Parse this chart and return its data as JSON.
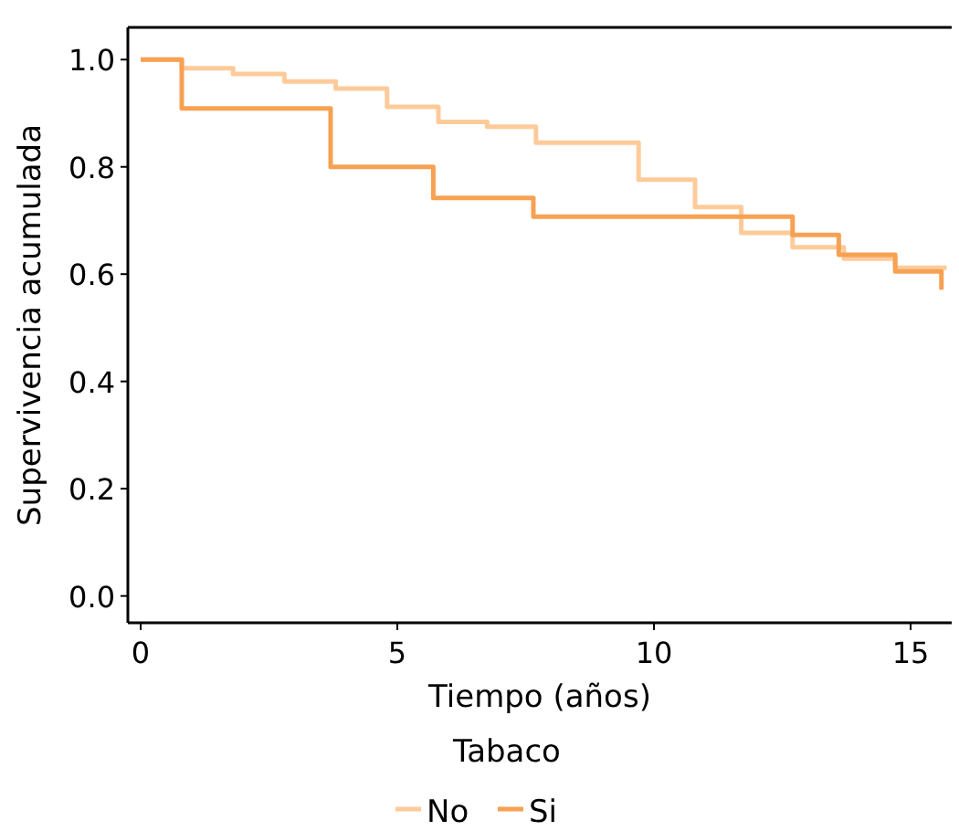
{
  "chart_data": {
    "type": "step",
    "xlabel": "Tiempo (años)",
    "ylabel": "Supervivencia acumulada",
    "legend_title": "Tabaco",
    "legend": "bottom",
    "grid": false,
    "xlim": [
      -0.25,
      15.8
    ],
    "xticks": [
      0,
      5,
      10,
      15
    ],
    "ylim": [
      -0.05,
      1.06
    ],
    "yticks": [
      {
        "value": 0,
        "label": "0.0"
      },
      {
        "value": 0.2,
        "label": "0.2"
      },
      {
        "value": 0.4,
        "label": "0.4"
      },
      {
        "value": 0.6,
        "label": "0.6"
      },
      {
        "value": 0.8,
        "label": "0.8"
      },
      {
        "value": 1,
        "label": "1.0"
      }
    ],
    "series": [
      {
        "name": "No",
        "color": "#fdcb9a",
        "x": [
          0,
          0.8,
          1.8,
          2.8,
          3.8,
          4.8,
          5.8,
          6.75,
          7.7,
          9.7,
          10.8,
          11.7,
          12.7,
          13.7,
          14.7,
          15.7
        ],
        "values": [
          1.0,
          0.984,
          0.973,
          0.959,
          0.946,
          0.912,
          0.884,
          0.875,
          0.845,
          0.776,
          0.725,
          0.677,
          0.65,
          0.629,
          0.612,
          0.612
        ]
      },
      {
        "name": "Si",
        "color": "#f7a153",
        "x": [
          0,
          0.8,
          3.7,
          5.7,
          7.65,
          12.7,
          13.6,
          14.7,
          15.6,
          15.6
        ],
        "values": [
          1.0,
          0.909,
          0.8,
          0.742,
          0.707,
          0.673,
          0.636,
          0.605,
          0.571,
          0.571
        ]
      }
    ]
  }
}
